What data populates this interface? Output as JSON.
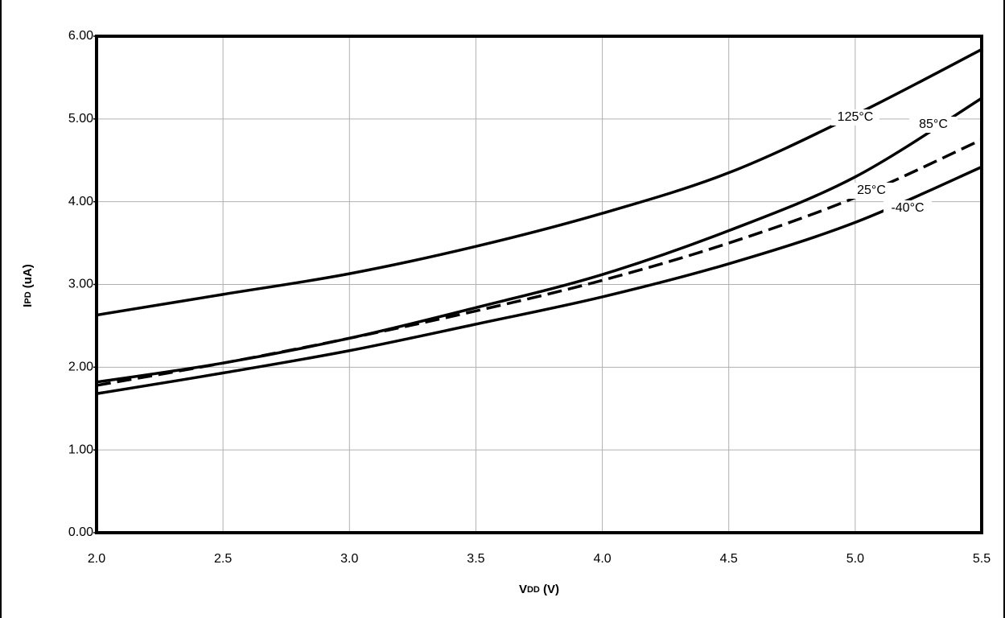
{
  "chart_data": {
    "type": "line",
    "x_label_main": "V",
    "x_label_sub": "DD",
    "x_label_unit": "(V)",
    "y_label_main": "I",
    "y_label_sub": "PD",
    "y_label_unit": "(uA)",
    "x": [
      2.0,
      2.5,
      3.0,
      3.5,
      4.0,
      4.5,
      5.0,
      5.5
    ],
    "series": [
      {
        "name": "125°C",
        "color": "#000000",
        "dashed": false,
        "values": [
          2.63,
          2.88,
          3.13,
          3.46,
          3.86,
          4.35,
          5.05,
          5.84
        ]
      },
      {
        "name": "85°C",
        "color": "#000000",
        "dashed": false,
        "values": [
          1.82,
          2.05,
          2.35,
          2.72,
          3.12,
          3.65,
          4.3,
          5.25
        ]
      },
      {
        "name": "25°C",
        "color": "#000000",
        "dashed": true,
        "values": [
          1.78,
          2.05,
          2.35,
          2.68,
          3.05,
          3.5,
          4.05,
          4.75
        ]
      },
      {
        "name": "-40°C",
        "color": "#000000",
        "dashed": false,
        "values": [
          1.68,
          1.93,
          2.2,
          2.52,
          2.85,
          3.25,
          3.75,
          4.42
        ]
      }
    ],
    "xlim": [
      2.0,
      5.5
    ],
    "xticks": [
      {
        "value": 2.0,
        "label": "2.0"
      },
      2.5,
      {
        "value": 3.0,
        "label": "3.0"
      },
      3.5,
      {
        "value": 4.0,
        "label": "4.0"
      },
      4.5,
      {
        "value": 5.0,
        "label": "5.0"
      },
      5.5
    ],
    "ylim": [
      0,
      6
    ],
    "yticks": [
      {
        "value": 0,
        "label": "0.00"
      },
      {
        "value": 1,
        "label": "1.00"
      },
      {
        "value": 2,
        "label": "2.00"
      },
      {
        "value": 3,
        "label": "3.00"
      },
      {
        "value": 4,
        "label": "4.00"
      },
      {
        "value": 5,
        "label": "5.00"
      },
      {
        "value": 6,
        "label": "6.00"
      }
    ],
    "grid": true
  }
}
